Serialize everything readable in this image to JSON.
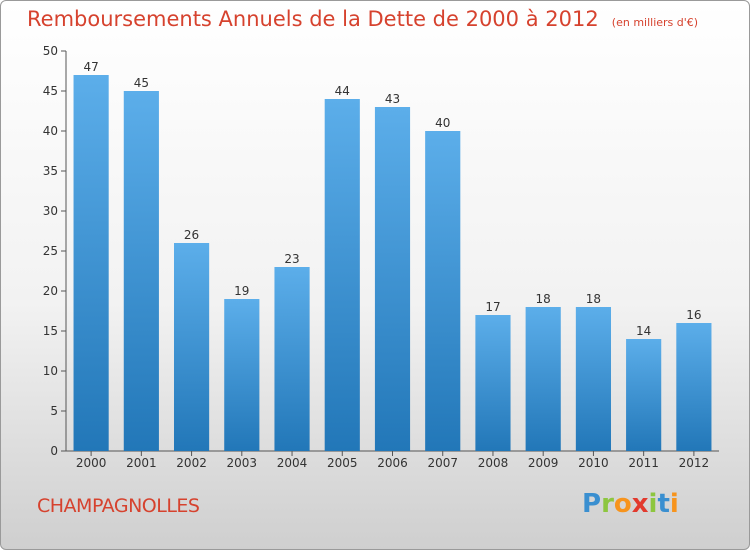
{
  "header": {
    "title": "Remboursements Annuels de la Dette de 2000 à 2012",
    "unit": "(en milliers d'€)"
  },
  "commune": "CHAMPAGNOLLES",
  "logo": {
    "text": "Proxiti",
    "letters": [
      {
        "ch": "P",
        "color": "#3a8fd0"
      },
      {
        "ch": "r",
        "color": "#8dc63f"
      },
      {
        "ch": "o",
        "color": "#f7941d"
      },
      {
        "ch": "x",
        "color": "#e23a2e"
      },
      {
        "ch": "i",
        "color": "#8dc63f"
      },
      {
        "ch": "t",
        "color": "#3a8fd0"
      },
      {
        "ch": "i",
        "color": "#f7941d"
      }
    ]
  },
  "colors": {
    "bar_light": "#5caeea",
    "bar_dark": "#2277b8",
    "title": "#d6422e"
  },
  "chart_data": {
    "type": "bar",
    "categories": [
      "2000",
      "2001",
      "2002",
      "2003",
      "2004",
      "2005",
      "2006",
      "2007",
      "2008",
      "2009",
      "2010",
      "2011",
      "2012"
    ],
    "values": [
      47,
      45,
      26,
      19,
      23,
      44,
      43,
      40,
      17,
      18,
      18,
      14,
      16
    ],
    "title": "Remboursements Annuels de la Dette de 2000 à 2012",
    "ylim": [
      0,
      50
    ],
    "yticks": [
      0,
      5,
      10,
      15,
      20,
      25,
      30,
      35,
      40,
      45,
      50
    ],
    "grid": false,
    "legend": "none"
  }
}
